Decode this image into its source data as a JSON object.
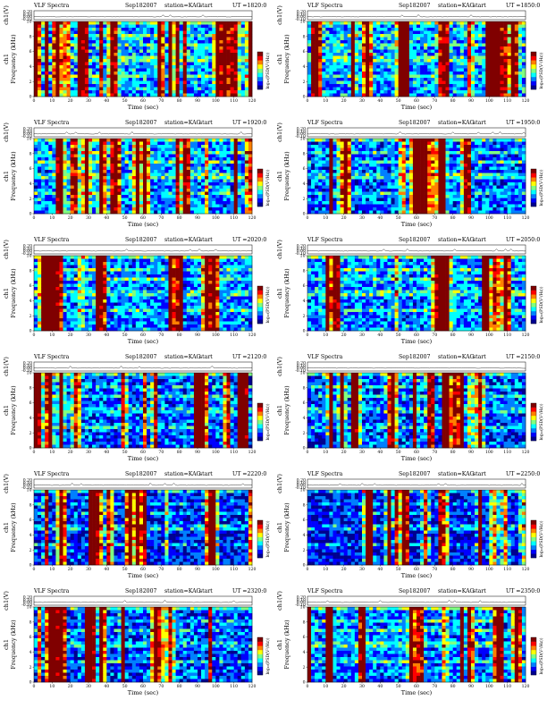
{
  "header": {
    "title": "VLF Spectra",
    "date": "Sep182007",
    "station_label": "station=KAG",
    "start_label": "start",
    "ut_label": "UT ="
  },
  "axes": {
    "voltage_label": "ch1(V)",
    "voltage_ticks": [
      "0.20",
      "0.10",
      "0.00",
      "-0.10"
    ],
    "channel_label": "ch1",
    "frequency_label": "Frequency (kHz)",
    "frequency_ticks": [
      "0",
      "2",
      "4",
      "6",
      "8",
      "10"
    ],
    "time_label": "Time (sec)",
    "time_ticks": [
      "0",
      "10",
      "20",
      "30",
      "40",
      "50",
      "60",
      "70",
      "80",
      "90",
      "100",
      "110",
      "120"
    ],
    "colorbar_label": "log₁₀(PSD(V²/Hz))"
  },
  "colors": {
    "scale": [
      "#00008f",
      "#0000ff",
      "#0080ff",
      "#00ffff",
      "#80ff80",
      "#ffff00",
      "#ff8000",
      "#ff0000",
      "#800000"
    ]
  },
  "chart_data": {
    "type": "heatmap",
    "x_range": [
      0,
      120
    ],
    "y_range": [
      0,
      10
    ],
    "voltage_range": [
      -0.1,
      0.2
    ],
    "panels": [
      {
        "start_ut": "1820:0",
        "intensity": 0.55
      },
      {
        "start_ut": "1850:0",
        "intensity": 0.55
      },
      {
        "start_ut": "1920:0",
        "intensity": 0.5
      },
      {
        "start_ut": "1950:0",
        "intensity": 0.45
      },
      {
        "start_ut": "2020:0",
        "intensity": 0.5
      },
      {
        "start_ut": "2050:0",
        "intensity": 0.5
      },
      {
        "start_ut": "2120:0",
        "intensity": 0.4
      },
      {
        "start_ut": "2150:0",
        "intensity": 0.4
      },
      {
        "start_ut": "2220:0",
        "intensity": 0.3
      },
      {
        "start_ut": "2250:0",
        "intensity": 0.25
      },
      {
        "start_ut": "2320:0",
        "intensity": 0.38
      },
      {
        "start_ut": "2350:0",
        "intensity": 0.48
      }
    ]
  }
}
